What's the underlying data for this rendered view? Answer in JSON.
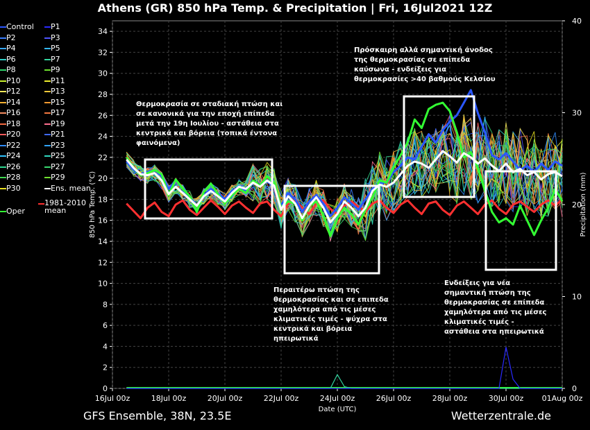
{
  "title": "Athens  (GR)  850 hPa Temp. & Precipitation | Fri, 16Jul2021 12Z",
  "footer_left": "GFS Ensemble, 38N, 23.5E",
  "footer_right": "Wetterzentrale.de",
  "legend": [
    {
      "label": "Control",
      "color": "#2b57ff"
    },
    {
      "label": "P1",
      "color": "#2a2aff"
    },
    {
      "label": "P2",
      "color": "#3a7dff"
    },
    {
      "label": "P3",
      "color": "#4f54ff"
    },
    {
      "label": "P4",
      "color": "#38a8ff"
    },
    {
      "label": "P5",
      "color": "#33b8ff"
    },
    {
      "label": "P6",
      "color": "#2fd0c8"
    },
    {
      "label": "P7",
      "color": "#33d6a0"
    },
    {
      "label": "P8",
      "color": "#2ed66b"
    },
    {
      "label": "P9",
      "color": "#6ee02e"
    },
    {
      "label": "P10",
      "color": "#c8f02e"
    },
    {
      "label": "P11",
      "color": "#f0f02e"
    },
    {
      "label": "P12",
      "color": "#f5e85a"
    },
    {
      "label": "P13",
      "color": "#f5c93a"
    },
    {
      "label": "P14",
      "color": "#f5b030"
    },
    {
      "label": "P15",
      "color": "#f59a30"
    },
    {
      "label": "P16",
      "color": "#f58c60"
    },
    {
      "label": "P17",
      "color": "#f57840"
    },
    {
      "label": "P18",
      "color": "#f56a40"
    },
    {
      "label": "P19",
      "color": "#ff6f8f"
    },
    {
      "label": "P20",
      "color": "#ff5a5a"
    },
    {
      "label": "P21",
      "color": "#3f6aff"
    },
    {
      "label": "P22",
      "color": "#2f8cff"
    },
    {
      "label": "P23",
      "color": "#30a4ff"
    },
    {
      "label": "P24",
      "color": "#30c4ff"
    },
    {
      "label": "P25",
      "color": "#30d8c0"
    },
    {
      "label": "P26",
      "color": "#30d890"
    },
    {
      "label": "P27",
      "color": "#38d870"
    },
    {
      "label": "P28",
      "color": "#40d850"
    },
    {
      "label": "P29",
      "color": "#70e030"
    },
    {
      "label": "P30",
      "color": "#e8e020"
    },
    {
      "label": "Ens. mean",
      "color": "#ffffff"
    },
    {
      "label": "1981-2010 mean",
      "color": "#ff3030"
    },
    {
      "label": "Oper",
      "color": "#33ff33"
    }
  ],
  "annotations": [
    {
      "text": "Θερμοκρασία σε σταδιακή πτώση και σε κανονικά για την εποχή επίπεδα μετά την 19η Ιουλίου - αστάθεια στα κεντρικά και βόρεια (τοπικά έντονα φαινόμενα)"
    },
    {
      "text": "Περαιτέρω πτώση της θερμοκρασίας και σε επιπεδα χαμηλότερα από τις μέσες κλιματικές τιμές - ψύχρα στα κεντρικά και βόρεια ηπειρωτικά"
    },
    {
      "text": "Πρόσκαιρη αλλά σημαντική άνοδος της θερμοκρασίας σε επίπεδα καύσωνα - ενδείξεις για θερμοκρασίες >40 βαθμούς Κελσίου"
    },
    {
      "text": "Ενδείξεις για νέα σημαντική πτώση της θερμοκρασίας σε επίπεδα χαμηλότερα από τις μέσες κλιματικές τιμές - αστάθεια στα ηπειρωτικά"
    }
  ],
  "chart_data": {
    "type": "line",
    "xlabel": "Date (UTC)",
    "ylabel": "850 hPa Temp. (°C)",
    "y2label": "Precipitation (mm)",
    "ylim": [
      0,
      35
    ],
    "y2lim": [
      0,
      40
    ],
    "yticks": [
      "0",
      "2",
      "4",
      "6",
      "8",
      "10",
      "12",
      "14",
      "16",
      "18",
      "20",
      "22",
      "24",
      "26",
      "28",
      "30",
      "32",
      "34"
    ],
    "y2ticks": [
      "0",
      "10",
      "20",
      "30",
      "40"
    ],
    "xticks": [
      "16Jul 00z",
      "18Jul 00z",
      "20Jul 00z",
      "22Jul 00z",
      "24Jul 00z",
      "26Jul 00z",
      "28Jul 00z",
      "30Jul 00z",
      "01Aug 00z"
    ],
    "grid": true,
    "x_days": [
      0.5,
      0.75,
      1,
      1.25,
      1.5,
      1.75,
      2,
      2.25,
      2.5,
      2.75,
      3,
      3.25,
      3.5,
      3.75,
      4,
      4.25,
      4.5,
      4.75,
      5,
      5.25,
      5.5,
      5.75,
      6,
      6.25,
      6.5,
      6.75,
      7,
      7.25,
      7.5,
      7.75,
      8,
      8.25,
      8.5,
      8.75,
      9,
      9.25,
      9.5,
      9.75,
      10,
      10.25,
      10.5,
      10.75,
      11,
      11.25,
      11.5,
      11.75,
      12,
      12.25,
      12.5,
      12.75,
      13,
      13.25,
      13.5,
      13.75,
      14,
      14.25,
      14.5,
      14.75,
      15,
      15.25,
      15.5,
      15.75,
      16
    ],
    "series": [
      {
        "name": "Ens. mean",
        "color": "#ffffff",
        "width": 3,
        "values": [
          21.8,
          21,
          20.4,
          20.3,
          20.5,
          19.8,
          18.5,
          19.2,
          18.6,
          18.0,
          17.4,
          18.3,
          18.8,
          18.3,
          17.8,
          18.6,
          19.2,
          19.0,
          19.6,
          19.2,
          19.8,
          19.3,
          17.0,
          18.3,
          17.6,
          16.2,
          17.4,
          18.2,
          17.2,
          15.8,
          16.6,
          17.8,
          17.2,
          16.4,
          17.2,
          18.8,
          19.4,
          19.2,
          19.6,
          20.4,
          21.2,
          21.6,
          21.4,
          21.0,
          21.8,
          22.6,
          22.1,
          21.5,
          22.4,
          22.0,
          21.4,
          21.9,
          21.2,
          20.7,
          21.4,
          20.6,
          20.9,
          20.3,
          20.6,
          19.9,
          20.4,
          20.6,
          20.2
        ]
      },
      {
        "name": "1981-2010 mean",
        "color": "#ff3030",
        "width": 3,
        "values": [
          17.6,
          16.9,
          16.2,
          17.2,
          17.7,
          16.8,
          16.4,
          17.5,
          17.9,
          17.0,
          16.5,
          17.2,
          17.9,
          17.3,
          16.6,
          17.4,
          17.8,
          17.2,
          16.7,
          17.6,
          17.8,
          17.0,
          16.4,
          17.6,
          17.9,
          17.2,
          16.6,
          17.6,
          17.9,
          17.1,
          16.6,
          17.4,
          17.8,
          17.3,
          16.8,
          17.6,
          17.9,
          17.2,
          16.7,
          17.5,
          17.9,
          17.2,
          16.6,
          17.6,
          17.8,
          17.0,
          16.5,
          17.4,
          17.8,
          17.2,
          16.6,
          17.5,
          17.9,
          17.1,
          16.6,
          17.5,
          17.8,
          17.3,
          16.8,
          17.5,
          17.9,
          17.4,
          18.0
        ]
      },
      {
        "name": "Oper",
        "color": "#33ff33",
        "width": 3,
        "values": [
          22.0,
          21.0,
          20.3,
          20.5,
          20.8,
          20.4,
          18.4,
          19.9,
          19.0,
          18.3,
          16.8,
          18.7,
          19.5,
          18.5,
          17.6,
          18.4,
          19.0,
          18.6,
          19.8,
          19.3,
          20.2,
          19.6,
          17.2,
          17.8,
          17.6,
          16.0,
          17.4,
          17.8,
          16.5,
          14.5,
          16.2,
          17.2,
          16.6,
          15.6,
          17.0,
          18.2,
          19.8,
          19.6,
          21.0,
          22.2,
          23.4,
          25.6,
          24.8,
          26.6,
          27.0,
          27.2,
          26.4,
          24.4,
          22.0,
          22.5,
          21.0,
          18.8,
          16.8,
          15.8,
          16.2,
          15.6,
          17.4,
          16.0,
          14.6,
          16.0,
          17.2,
          19.0,
          17.8
        ]
      },
      {
        "name": "Control",
        "color": "#2b57ff",
        "width": 3,
        "values": [
          21.6,
          20.8,
          20.4,
          20.6,
          20.8,
          20.2,
          19.0,
          19.8,
          19.0,
          18.2,
          17.4,
          18.4,
          19.0,
          18.6,
          18.0,
          18.8,
          19.2,
          18.8,
          19.6,
          19.3,
          19.7,
          19.2,
          17.4,
          18.6,
          18.0,
          16.8,
          17.8,
          18.4,
          17.6,
          16.4,
          17.2,
          18.2,
          17.6,
          17.0,
          18.0,
          19.0,
          19.6,
          19.6,
          20.6,
          21.2,
          22.0,
          21.8,
          23.0,
          24.2,
          23.4,
          24.6,
          25.4,
          26.0,
          27.2,
          28.4,
          26.2,
          24.4,
          22.2,
          21.8,
          22.4,
          21.6,
          20.8,
          21.2,
          20.6,
          21.4,
          20.8,
          21.6,
          21.2
        ]
      }
    ],
    "precip_series": [
      {
        "name": "P7",
        "color": "#33d6a0",
        "values": [
          0,
          0,
          0,
          0,
          0,
          0,
          0,
          0,
          0,
          0,
          0,
          0,
          0,
          0,
          0,
          0,
          0,
          0,
          0,
          0,
          0,
          0,
          0,
          0,
          0,
          0,
          0,
          0,
          0,
          0,
          1.5,
          0.2,
          0,
          0,
          0,
          0,
          0,
          0,
          0,
          0,
          0,
          0,
          0,
          0,
          0,
          0,
          0,
          0,
          0,
          0,
          0,
          0,
          0,
          0,
          0,
          0,
          0,
          0,
          0,
          0,
          0,
          0,
          0
        ]
      },
      {
        "name": "P1",
        "color": "#2a2aff",
        "values": [
          0,
          0,
          0,
          0,
          0,
          0,
          0,
          0,
          0,
          0,
          0,
          0,
          0,
          0,
          0,
          0,
          0,
          0,
          0,
          0,
          0,
          0,
          0,
          0,
          0,
          0,
          0,
          0,
          0,
          0,
          0,
          0,
          0,
          0,
          0,
          0,
          0,
          0,
          0,
          0,
          0,
          0,
          0,
          0,
          0,
          0,
          0,
          0,
          0,
          0,
          0,
          0,
          0,
          0,
          4.5,
          1.0,
          0,
          0,
          0,
          0,
          0,
          0,
          0
        ]
      }
    ]
  }
}
